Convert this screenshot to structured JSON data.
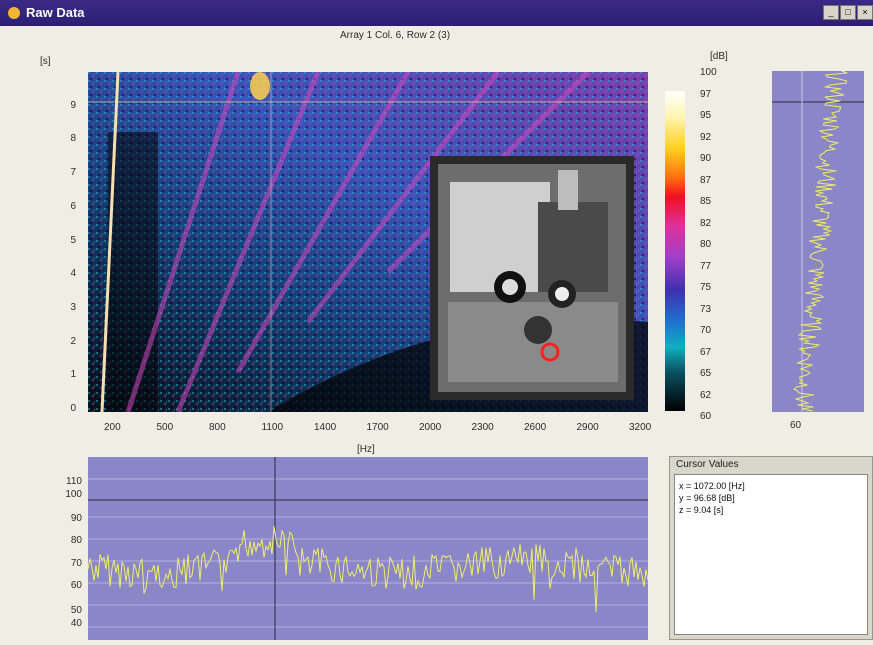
{
  "window": {
    "title": "Raw Data",
    "buttons": {
      "minimize": "_",
      "maximize": "□",
      "close": "×"
    }
  },
  "spectrogram": {
    "title": "Array 1  Col. 6, Row 2 (3)",
    "y_unit": "[s]",
    "x_unit": "[Hz]",
    "y_ticks": [
      "0",
      "1",
      "2",
      "3",
      "4",
      "5",
      "6",
      "7",
      "8",
      "9"
    ],
    "x_ticks": [
      "200",
      "500",
      "800",
      "1100",
      "1400",
      "1700",
      "2000",
      "2300",
      "2600",
      "2900",
      "3200"
    ],
    "inset_photo": "engine photograph with sensor marker"
  },
  "colorbar": {
    "unit": "[dB]",
    "ticks": [
      "100",
      "97",
      "95",
      "92",
      "90",
      "87",
      "85",
      "82",
      "80",
      "77",
      "75",
      "73",
      "70",
      "67",
      "65",
      "62",
      "60"
    ]
  },
  "time_slice": {
    "x_tick": "60"
  },
  "freq_slice": {
    "y_ticks": [
      "110",
      "100",
      "90",
      "80",
      "70",
      "60",
      "50",
      "40"
    ]
  },
  "cursor_values": {
    "header": "Cursor Values",
    "x": "x = 1072.00 [Hz]",
    "y": "y = 96.68 [dB]",
    "z": "z = 9.04 [s]"
  },
  "colors": {
    "title_bar": "#2c1f72",
    "plot_bg": "#8a86c8",
    "trace": "#f0ef64",
    "marker": "#ff2020"
  }
}
